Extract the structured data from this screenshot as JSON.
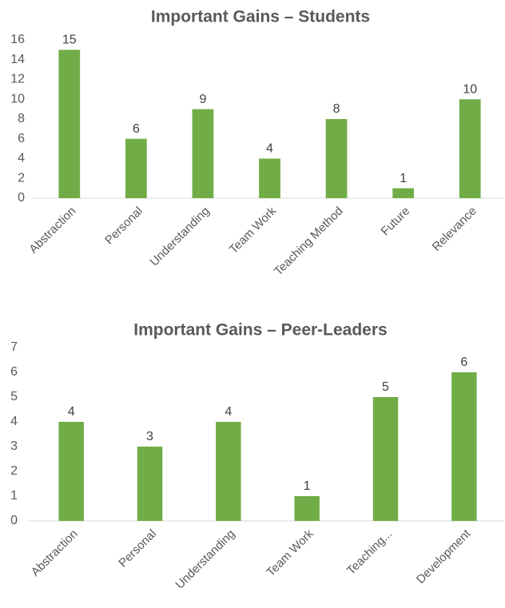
{
  "chart_data": [
    {
      "type": "bar",
      "title": "Important Gains – Students",
      "categories": [
        "Abstraction",
        "Personal",
        "Understanding",
        "Team Work",
        "Teaching Method",
        "Future",
        "Relevance"
      ],
      "values": [
        15,
        6,
        9,
        4,
        8,
        1,
        10
      ],
      "color": "#70ad47",
      "ylim": [
        0,
        16
      ],
      "yticks": [
        0,
        2,
        4,
        6,
        8,
        10,
        12,
        14,
        16
      ]
    },
    {
      "type": "bar",
      "title": "Important Gains – Peer-Leaders",
      "categories": [
        "Abstraction",
        "Personal",
        "Understanding",
        "Team Work",
        "Teaching...",
        "Development"
      ],
      "values": [
        4,
        3,
        4,
        1,
        5,
        6
      ],
      "color": "#70ad47",
      "ylim": [
        0,
        7
      ],
      "yticks": [
        0,
        1,
        2,
        3,
        4,
        5,
        6,
        7
      ]
    }
  ]
}
